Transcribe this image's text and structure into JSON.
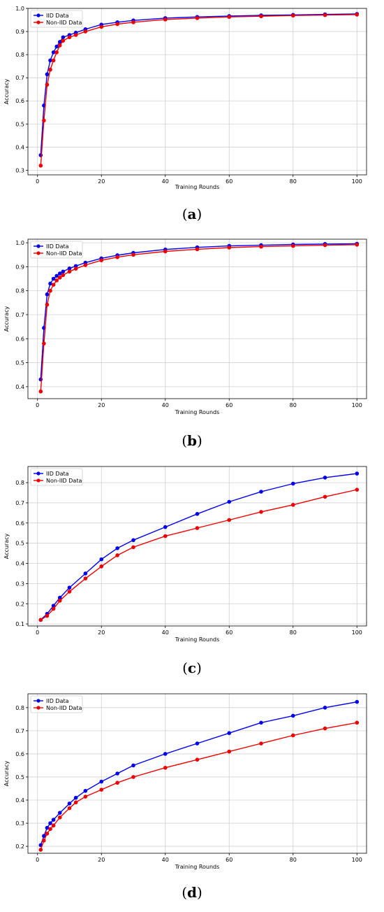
{
  "colors": {
    "iid": "#0000ee",
    "noniid": "#ee0000",
    "grid": "#d0d0d0"
  },
  "chart_data": [
    {
      "type": "line",
      "panel": "a",
      "caption": "a",
      "xlabel": "Training Rounds",
      "ylabel": "Accuracy",
      "xlim": [
        -3,
        103
      ],
      "ylim": [
        0.28,
        1.0
      ],
      "xticks": [
        0,
        20,
        40,
        60,
        80,
        100
      ],
      "yticks": [
        0.3,
        0.4,
        0.5,
        0.6,
        0.7,
        0.8,
        0.9,
        1.0
      ],
      "ytick_labels": [
        "0.3",
        "0.4",
        "0.5",
        "0.6",
        "0.7",
        "0.8",
        "0.9",
        "1.0"
      ],
      "grid": true,
      "legend": "top-left",
      "series": [
        {
          "name": "IID Data",
          "color_key": "iid",
          "x": [
            1,
            2,
            3,
            4,
            5,
            6,
            7,
            8,
            10,
            12,
            15,
            20,
            25,
            30,
            40,
            50,
            60,
            70,
            80,
            90,
            100
          ],
          "y": [
            0.365,
            0.58,
            0.715,
            0.775,
            0.81,
            0.835,
            0.855,
            0.875,
            0.885,
            0.895,
            0.91,
            0.93,
            0.94,
            0.948,
            0.958,
            0.963,
            0.967,
            0.97,
            0.972,
            0.974,
            0.976
          ]
        },
        {
          "name": "Non-IID Data",
          "color_key": "noniid",
          "x": [
            1,
            2,
            3,
            4,
            5,
            6,
            7,
            8,
            10,
            12,
            15,
            20,
            25,
            30,
            40,
            50,
            60,
            70,
            80,
            90,
            100
          ],
          "y": [
            0.32,
            0.515,
            0.67,
            0.735,
            0.775,
            0.81,
            0.84,
            0.86,
            0.875,
            0.885,
            0.9,
            0.92,
            0.932,
            0.94,
            0.952,
            0.958,
            0.963,
            0.966,
            0.969,
            0.971,
            0.973
          ]
        }
      ]
    },
    {
      "type": "line",
      "panel": "b",
      "caption": "b",
      "xlabel": "Training Rounds",
      "ylabel": "Accuracy",
      "xlim": [
        -3,
        103
      ],
      "ylim": [
        0.35,
        1.015
      ],
      "xticks": [
        0,
        20,
        40,
        60,
        80,
        100
      ],
      "yticks": [
        0.4,
        0.5,
        0.6,
        0.7,
        0.8,
        0.9,
        1.0
      ],
      "ytick_labels": [
        "0.4",
        "0.5",
        "0.6",
        "0.7",
        "0.8",
        "0.9",
        "1.0"
      ],
      "grid": true,
      "legend": "top-left",
      "series": [
        {
          "name": "IID Data",
          "color_key": "iid",
          "x": [
            1,
            2,
            3,
            4,
            5,
            6,
            7,
            8,
            10,
            12,
            15,
            20,
            25,
            30,
            40,
            50,
            60,
            70,
            80,
            90,
            100
          ],
          "y": [
            0.43,
            0.645,
            0.785,
            0.83,
            0.85,
            0.862,
            0.872,
            0.88,
            0.893,
            0.903,
            0.917,
            0.935,
            0.948,
            0.958,
            0.972,
            0.981,
            0.987,
            0.99,
            0.993,
            0.995,
            0.996
          ]
        },
        {
          "name": "Non-IID Data",
          "color_key": "noniid",
          "x": [
            1,
            2,
            3,
            4,
            5,
            6,
            7,
            8,
            10,
            12,
            15,
            20,
            25,
            30,
            40,
            50,
            60,
            70,
            80,
            90,
            100
          ],
          "y": [
            0.38,
            0.58,
            0.742,
            0.8,
            0.825,
            0.843,
            0.855,
            0.865,
            0.88,
            0.892,
            0.907,
            0.927,
            0.94,
            0.95,
            0.964,
            0.973,
            0.98,
            0.984,
            0.987,
            0.99,
            0.992
          ]
        }
      ]
    },
    {
      "type": "line",
      "panel": "c",
      "caption": "c",
      "xlabel": "Training Rounds",
      "ylabel": "Accuracy",
      "xlim": [
        -3,
        103
      ],
      "ylim": [
        0.09,
        0.88
      ],
      "xticks": [
        0,
        20,
        40,
        60,
        80,
        100
      ],
      "yticks": [
        0.1,
        0.2,
        0.3,
        0.4,
        0.5,
        0.6,
        0.7,
        0.8
      ],
      "ytick_labels": [
        "0.1",
        "0.2",
        "0.3",
        "0.4",
        "0.5",
        "0.6",
        "0.7",
        "0.8"
      ],
      "grid": true,
      "legend": "top-left",
      "series": [
        {
          "name": "IID Data",
          "color_key": "iid",
          "x": [
            1,
            3,
            5,
            7,
            10,
            15,
            20,
            25,
            30,
            40,
            50,
            60,
            70,
            80,
            90,
            100
          ],
          "y": [
            0.12,
            0.15,
            0.19,
            0.23,
            0.28,
            0.35,
            0.42,
            0.475,
            0.515,
            0.58,
            0.645,
            0.705,
            0.755,
            0.795,
            0.825,
            0.845
          ]
        },
        {
          "name": "Non-IID Data",
          "color_key": "noniid",
          "x": [
            1,
            3,
            5,
            7,
            10,
            15,
            20,
            25,
            30,
            40,
            50,
            60,
            70,
            80,
            90,
            100
          ],
          "y": [
            0.12,
            0.14,
            0.175,
            0.215,
            0.26,
            0.325,
            0.385,
            0.44,
            0.48,
            0.535,
            0.575,
            0.615,
            0.655,
            0.69,
            0.73,
            0.765
          ]
        }
      ]
    },
    {
      "type": "line",
      "panel": "d",
      "caption": "d",
      "xlabel": "Training Rounds",
      "ylabel": "Accuracy",
      "xlim": [
        -3,
        103
      ],
      "ylim": [
        0.17,
        0.86
      ],
      "xticks": [
        0,
        20,
        40,
        60,
        80,
        100
      ],
      "yticks": [
        0.2,
        0.3,
        0.4,
        0.5,
        0.6,
        0.7,
        0.8
      ],
      "ytick_labels": [
        "0.2",
        "0.3",
        "0.4",
        "0.5",
        "0.6",
        "0.7",
        "0.8"
      ],
      "grid": true,
      "legend": "top-left",
      "series": [
        {
          "name": "IID Data",
          "color_key": "iid",
          "x": [
            1,
            2,
            3,
            4,
            5,
            7,
            10,
            12,
            15,
            20,
            25,
            30,
            40,
            50,
            60,
            70,
            80,
            90,
            100
          ],
          "y": [
            0.205,
            0.245,
            0.28,
            0.3,
            0.315,
            0.345,
            0.385,
            0.41,
            0.44,
            0.48,
            0.515,
            0.55,
            0.6,
            0.645,
            0.69,
            0.735,
            0.765,
            0.8,
            0.825
          ]
        },
        {
          "name": "Non-IID Data",
          "color_key": "noniid",
          "x": [
            1,
            2,
            3,
            4,
            5,
            7,
            10,
            12,
            15,
            20,
            25,
            30,
            40,
            50,
            60,
            70,
            80,
            90,
            100
          ],
          "y": [
            0.185,
            0.225,
            0.255,
            0.275,
            0.29,
            0.325,
            0.365,
            0.39,
            0.415,
            0.445,
            0.475,
            0.5,
            0.54,
            0.575,
            0.61,
            0.645,
            0.68,
            0.71,
            0.735
          ]
        }
      ]
    }
  ]
}
